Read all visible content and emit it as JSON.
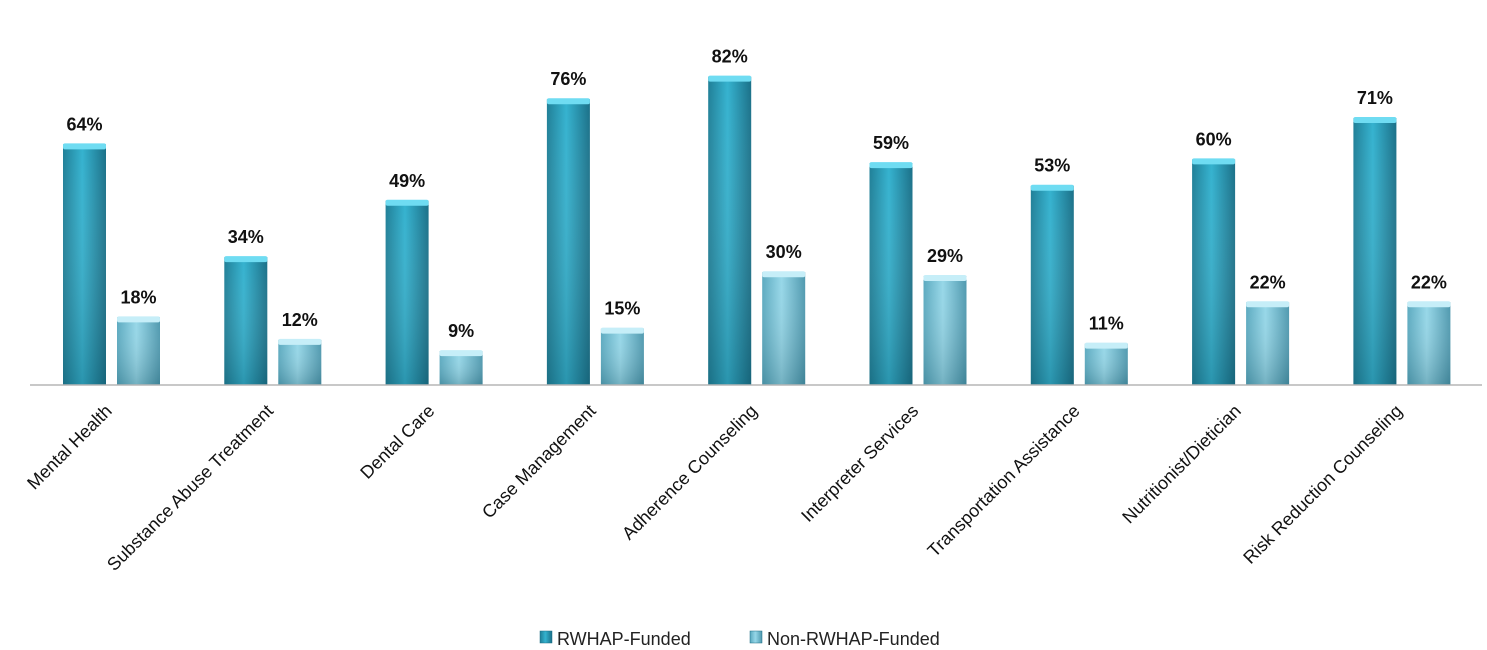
{
  "chart_data": {
    "type": "bar",
    "categories": [
      "Mental Health",
      "Substance Abuse Treatment",
      "Dental Care",
      "Case Management",
      "Adherence Counseling",
      "Interpreter Services",
      "Transportation Assistance",
      "Nutritionist/Dietician",
      "Risk Reduction Counseling"
    ],
    "series": [
      {
        "name": "RWHAP-Funded",
        "values": [
          64,
          34,
          49,
          76,
          82,
          59,
          53,
          60,
          71
        ],
        "color": "#2aa7c4"
      },
      {
        "name": "Non-RWHAP-Funded",
        "values": [
          18,
          12,
          9,
          15,
          30,
          29,
          11,
          22,
          22
        ],
        "color": "#7fcfe2"
      }
    ],
    "data_labels": [
      [
        "64%",
        "34%",
        "49%",
        "76%",
        "82%",
        "59%",
        "53%",
        "60%",
        "71%"
      ],
      [
        "18%",
        "12%",
        "9%",
        "15%",
        "30%",
        "29%",
        "11%",
        "22%",
        "22%"
      ]
    ],
    "title": "",
    "xlabel": "",
    "ylabel": "",
    "ylim": [
      0,
      85
    ],
    "grid": false,
    "legend_position": "bottom"
  }
}
